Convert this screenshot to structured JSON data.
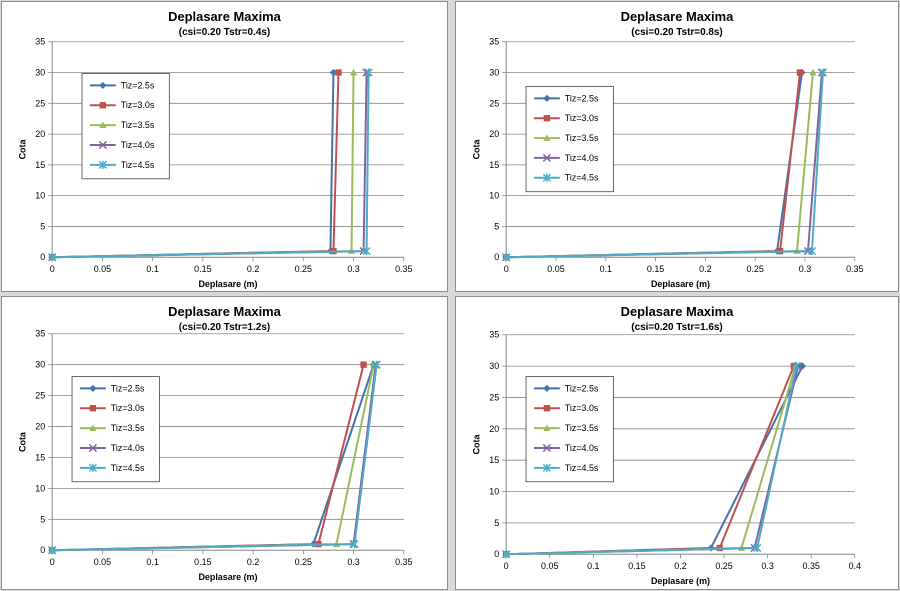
{
  "chart_data": [
    {
      "type": "line",
      "title": "Deplasare Maxima",
      "subtitle": "(csi=0.20  Tstr=0.4s)",
      "xlabel": "Deplasare (m)",
      "ylabel": "Cota",
      "xlim": [
        0,
        0.35
      ],
      "ylim": [
        0,
        35
      ],
      "xticks": [
        "0",
        "0.05",
        "0.1",
        "0.15",
        "0.2",
        "0.25",
        "0.3",
        "0.35"
      ],
      "yticks": [
        "0",
        "5",
        "10",
        "15",
        "20",
        "25",
        "30",
        "35"
      ],
      "grid": "horizontal",
      "series": [
        {
          "name": "Tiz=2.5s",
          "color": "#4572a7",
          "marker": "diamond",
          "points": [
            [
              0,
              0
            ],
            [
              0.277,
              1
            ],
            [
              0.28,
              30
            ]
          ]
        },
        {
          "name": "Tiz=3.0s",
          "color": "#c0504d",
          "marker": "square",
          "points": [
            [
              0,
              0
            ],
            [
              0.28,
              1
            ],
            [
              0.285,
              30
            ]
          ]
        },
        {
          "name": "Tiz=3.5s",
          "color": "#9bbb59",
          "marker": "triangle",
          "points": [
            [
              0,
              0
            ],
            [
              0.298,
              1
            ],
            [
              0.3,
              30
            ]
          ]
        },
        {
          "name": "Tiz=4.0s",
          "color": "#8064a2",
          "marker": "x",
          "points": [
            [
              0,
              0
            ],
            [
              0.31,
              1
            ],
            [
              0.313,
              30
            ]
          ]
        },
        {
          "name": "Tiz=4.5s",
          "color": "#4bacc6",
          "marker": "star",
          "points": [
            [
              0,
              0
            ],
            [
              0.313,
              1
            ],
            [
              0.315,
              30
            ]
          ]
        }
      ]
    },
    {
      "type": "line",
      "title": "Deplasare Maxima",
      "subtitle": "(csi=0.20  Tstr=0.8s)",
      "xlabel": "Deplasare (m)",
      "ylabel": "Cota",
      "xlim": [
        0,
        0.35
      ],
      "ylim": [
        0,
        35
      ],
      "xticks": [
        "0",
        "0.05",
        "0.1",
        "0.15",
        "0.2",
        "0.25",
        "0.3",
        "0.35"
      ],
      "yticks": [
        "0",
        "5",
        "10",
        "15",
        "20",
        "25",
        "30",
        "35"
      ],
      "grid": "horizontal",
      "series": [
        {
          "name": "Tiz=2.5s",
          "color": "#4572a7",
          "marker": "diamond",
          "points": [
            [
              0,
              0
            ],
            [
              0.272,
              1
            ],
            [
              0.297,
              30
            ]
          ]
        },
        {
          "name": "Tiz=3.0s",
          "color": "#c0504d",
          "marker": "square",
          "points": [
            [
              0,
              0
            ],
            [
              0.275,
              1
            ],
            [
              0.295,
              30
            ]
          ]
        },
        {
          "name": "Tiz=3.5s",
          "color": "#9bbb59",
          "marker": "triangle",
          "points": [
            [
              0,
              0
            ],
            [
              0.292,
              1
            ],
            [
              0.308,
              30
            ]
          ]
        },
        {
          "name": "Tiz=4.0s",
          "color": "#8064a2",
          "marker": "x",
          "points": [
            [
              0,
              0
            ],
            [
              0.303,
              1
            ],
            [
              0.317,
              30
            ]
          ]
        },
        {
          "name": "Tiz=4.5s",
          "color": "#4bacc6",
          "marker": "star",
          "points": [
            [
              0,
              0
            ],
            [
              0.307,
              1
            ],
            [
              0.318,
              30
            ]
          ]
        }
      ]
    },
    {
      "type": "line",
      "title": "Deplasare Maxima",
      "subtitle": "(csi=0.20  Tstr=1.2s)",
      "xlabel": "Deplasare (m)",
      "ylabel": "Cota",
      "xlim": [
        0,
        0.35
      ],
      "ylim": [
        0,
        35
      ],
      "xticks": [
        "0",
        "0.05",
        "0.1",
        "0.15",
        "0.2",
        "0.25",
        "0.3",
        "0.35"
      ],
      "yticks": [
        "0",
        "5",
        "10",
        "15",
        "20",
        "25",
        "30",
        "35"
      ],
      "grid": "horizontal",
      "series": [
        {
          "name": "Tiz=2.5s",
          "color": "#4572a7",
          "marker": "diamond",
          "points": [
            [
              0,
              0
            ],
            [
              0.26,
              1
            ],
            [
              0.32,
              30
            ]
          ]
        },
        {
          "name": "Tiz=3.0s",
          "color": "#c0504d",
          "marker": "square",
          "points": [
            [
              0,
              0
            ],
            [
              0.265,
              1
            ],
            [
              0.31,
              30
            ]
          ]
        },
        {
          "name": "Tiz=3.5s",
          "color": "#9bbb59",
          "marker": "triangle",
          "points": [
            [
              0,
              0
            ],
            [
              0.283,
              1
            ],
            [
              0.32,
              30
            ]
          ]
        },
        {
          "name": "Tiz=4.0s",
          "color": "#8064a2",
          "marker": "x",
          "points": [
            [
              0,
              0
            ],
            [
              0.3,
              1
            ],
            [
              0.322,
              30
            ]
          ]
        },
        {
          "name": "Tiz=4.5s",
          "color": "#4bacc6",
          "marker": "star",
          "points": [
            [
              0,
              0
            ],
            [
              0.301,
              1
            ],
            [
              0.323,
              30
            ]
          ]
        }
      ]
    },
    {
      "type": "line",
      "title": "Deplasare Maxima",
      "subtitle": "(csi=0.20  Tstr=1.6s)",
      "xlabel": "Deplasare (m)",
      "ylabel": "Cota",
      "xlim": [
        0,
        0.4
      ],
      "ylim": [
        0,
        35
      ],
      "xticks": [
        "0",
        "0.05",
        "0.1",
        "0.15",
        "0.2",
        "0.25",
        "0.3",
        "0.35",
        "0.4"
      ],
      "yticks": [
        "0",
        "5",
        "10",
        "15",
        "20",
        "25",
        "30",
        "35"
      ],
      "grid": "horizontal",
      "series": [
        {
          "name": "Tiz=2.5s",
          "color": "#4572a7",
          "marker": "diamond",
          "points": [
            [
              0,
              0
            ],
            [
              0.235,
              1
            ],
            [
              0.34,
              30
            ]
          ]
        },
        {
          "name": "Tiz=3.0s",
          "color": "#c0504d",
          "marker": "square",
          "points": [
            [
              0,
              0
            ],
            [
              0.245,
              1
            ],
            [
              0.33,
              30
            ]
          ]
        },
        {
          "name": "Tiz=3.5s",
          "color": "#9bbb59",
          "marker": "triangle",
          "points": [
            [
              0,
              0
            ],
            [
              0.27,
              1
            ],
            [
              0.332,
              30
            ]
          ]
        },
        {
          "name": "Tiz=4.0s",
          "color": "#8064a2",
          "marker": "x",
          "points": [
            [
              0,
              0
            ],
            [
              0.285,
              1
            ],
            [
              0.335,
              30
            ]
          ]
        },
        {
          "name": "Tiz=4.5s",
          "color": "#4bacc6",
          "marker": "star",
          "points": [
            [
              0,
              0
            ],
            [
              0.288,
              1
            ],
            [
              0.333,
              30
            ]
          ]
        }
      ]
    }
  ]
}
